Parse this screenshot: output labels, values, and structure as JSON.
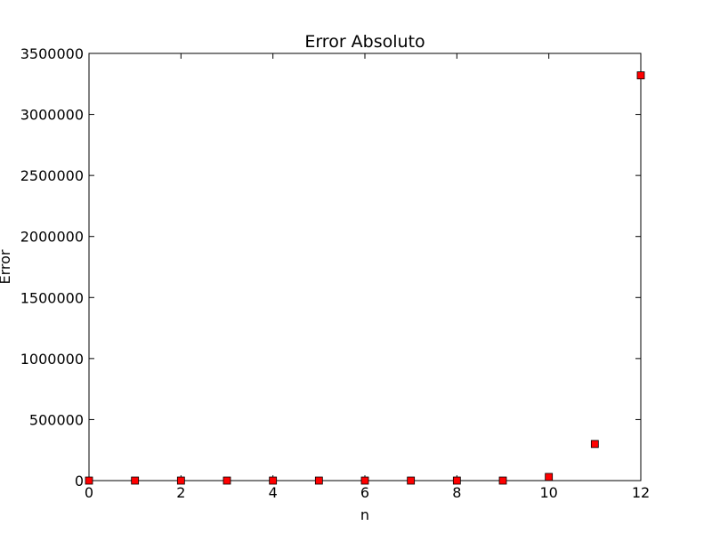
{
  "chart_data": {
    "type": "scatter",
    "title": "Error Absoluto",
    "xlabel": "n",
    "ylabel": "Error",
    "xlim": [
      0,
      12
    ],
    "ylim": [
      0,
      3500000
    ],
    "xticks": [
      0,
      2,
      4,
      6,
      8,
      10,
      12
    ],
    "xtick_labels": [
      "0",
      "2",
      "4",
      "6",
      "8",
      "10",
      "12"
    ],
    "yticks": [
      0,
      500000,
      1000000,
      1500000,
      2000000,
      2500000,
      3000000,
      3500000
    ],
    "ytick_labels": [
      "0",
      "500000",
      "1000000",
      "1500000",
      "2000000",
      "2500000",
      "3000000",
      "3500000"
    ],
    "grid": false,
    "marker": "square",
    "marker_color": "#ff0000",
    "series": [
      {
        "x": [
          0,
          1,
          2,
          3,
          4,
          5,
          6,
          7,
          8,
          9,
          10,
          11,
          12
        ],
        "y": [
          0,
          0,
          0,
          0,
          0,
          0,
          0,
          0,
          0,
          0,
          30000,
          300000,
          3320000
        ]
      }
    ]
  }
}
